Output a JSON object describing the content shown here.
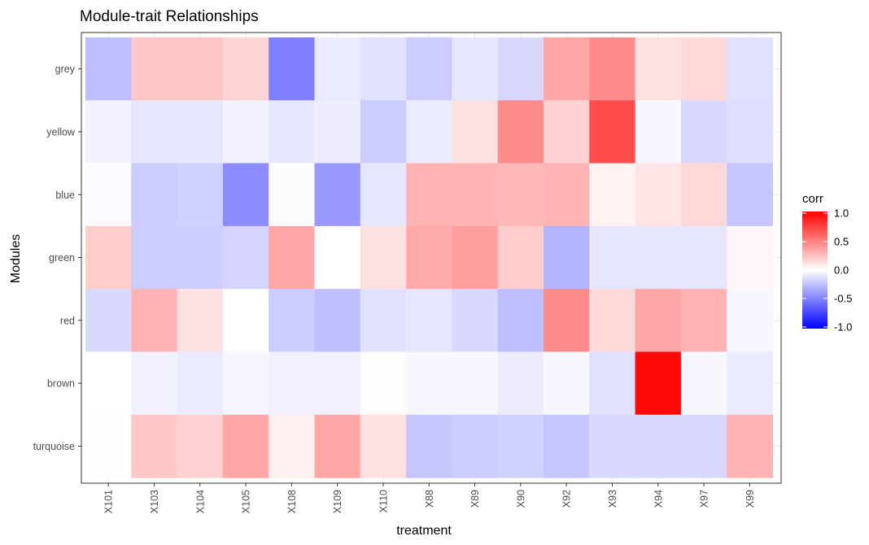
{
  "chart_data": {
    "type": "heatmap",
    "title": "Module-trait Relationships",
    "xlabel": "treatment",
    "ylabel": "Modules",
    "x_categories": [
      "X101",
      "X103",
      "X104",
      "X105",
      "X108",
      "X109",
      "X110",
      "X88",
      "X89",
      "X90",
      "X92",
      "X93",
      "X94",
      "X97",
      "X99"
    ],
    "y_categories": [
      "grey",
      "yellow",
      "blue",
      "green",
      "red",
      "brown",
      "turquoise"
    ],
    "values": [
      [
        -0.25,
        0.22,
        0.22,
        0.17,
        -0.5,
        -0.08,
        -0.12,
        -0.2,
        -0.1,
        -0.15,
        0.35,
        0.45,
        0.12,
        0.15,
        -0.12
      ],
      [
        -0.05,
        -0.1,
        -0.1,
        -0.05,
        -0.1,
        -0.07,
        -0.2,
        -0.08,
        0.12,
        0.45,
        0.18,
        0.7,
        -0.03,
        -0.15,
        -0.13
      ],
      [
        -0.02,
        -0.2,
        -0.18,
        -0.45,
        -0.01,
        -0.4,
        -0.1,
        0.3,
        0.3,
        0.28,
        0.3,
        0.05,
        0.1,
        0.15,
        -0.22
      ],
      [
        0.2,
        -0.2,
        -0.2,
        -0.17,
        0.35,
        0.0,
        0.12,
        0.33,
        0.38,
        0.2,
        -0.3,
        -0.1,
        -0.1,
        -0.1,
        0.03
      ],
      [
        -0.15,
        0.3,
        0.12,
        0.0,
        -0.2,
        -0.25,
        -0.12,
        -0.1,
        -0.15,
        -0.25,
        0.45,
        0.15,
        0.35,
        0.3,
        -0.03
      ],
      [
        0.0,
        -0.05,
        -0.08,
        -0.04,
        -0.06,
        -0.06,
        0.01,
        -0.03,
        -0.03,
        -0.07,
        -0.03,
        -0.12,
        0.97,
        -0.03,
        -0.08
      ],
      [
        0.01,
        0.22,
        0.18,
        0.35,
        0.06,
        0.35,
        0.12,
        -0.22,
        -0.2,
        -0.18,
        -0.22,
        -0.15,
        -0.15,
        -0.15,
        0.3
      ]
    ],
    "ylim": [
      -1.0,
      1.0
    ],
    "legend": {
      "title": "corr",
      "placement": "right",
      "ticks": [
        "1.0",
        "0.5",
        "0.0",
        "-0.5",
        "-1.0"
      ],
      "tick_values": [
        1.0,
        0.5,
        0.0,
        -0.5,
        -1.0
      ]
    },
    "colors": {
      "low": "#0000ff",
      "mid": "#ffffff",
      "high": "#ff0000",
      "grid": "#ebebeb",
      "panel_border": "#333333",
      "tick_text": "#4d4d4d"
    },
    "grid": true
  }
}
